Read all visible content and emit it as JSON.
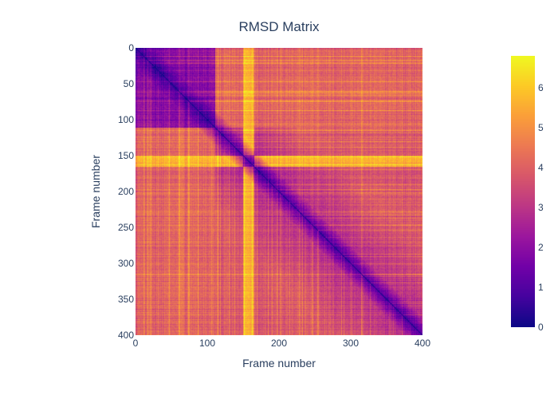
{
  "chart_data": {
    "type": "heatmap",
    "title": "RMSD Matrix",
    "xlabel": "Frame number",
    "ylabel": "Frame number",
    "x_range": [
      0,
      400
    ],
    "y_range": [
      0,
      400
    ],
    "y_reversed": true,
    "x_ticks": [
      0,
      100,
      200,
      300,
      400
    ],
    "y_ticks": [
      0,
      50,
      100,
      150,
      200,
      250,
      300,
      350,
      400
    ],
    "colorscale": "Plasma",
    "colorscale_stops": [
      "#0d0887",
      "#46039f",
      "#7201a8",
      "#9c179e",
      "#bd3786",
      "#d8576b",
      "#ed7953",
      "#fb9f3a",
      "#fdca26",
      "#f0f921"
    ],
    "z_range": [
      0,
      6.8
    ],
    "colorbar_ticks": [
      0,
      1,
      2,
      3,
      4,
      5,
      6
    ],
    "grid": false,
    "features": {
      "zero_diagonal": true,
      "high_rmsd_band_frames": [
        150,
        165
      ],
      "band_value": 5.6,
      "low_block_frames": [
        0,
        110
      ],
      "low_block_value": 1.5,
      "background_value": 3.2
    }
  }
}
